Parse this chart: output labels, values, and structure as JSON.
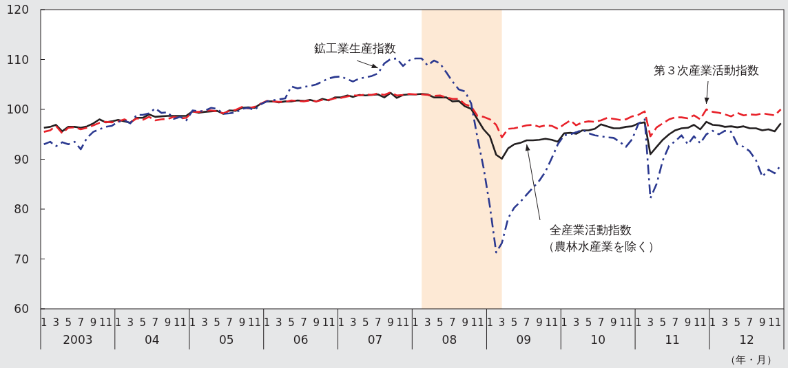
{
  "chart_data": {
    "type": "line",
    "x": [
      "2003-01",
      "2003-02",
      "2003-03",
      "2003-04",
      "2003-05",
      "2003-06",
      "2003-07",
      "2003-08",
      "2003-09",
      "2003-10",
      "2003-11",
      "2003-12",
      "2004-01",
      "2004-02",
      "2004-03",
      "2004-04",
      "2004-05",
      "2004-06",
      "2004-07",
      "2004-08",
      "2004-09",
      "2004-10",
      "2004-11",
      "2004-12",
      "2005-01",
      "2005-02",
      "2005-03",
      "2005-04",
      "2005-05",
      "2005-06",
      "2005-07",
      "2005-08",
      "2005-09",
      "2005-10",
      "2005-11",
      "2005-12",
      "2006-01",
      "2006-02",
      "2006-03",
      "2006-04",
      "2006-05",
      "2006-06",
      "2006-07",
      "2006-08",
      "2006-09",
      "2006-10",
      "2006-11",
      "2006-12",
      "2007-01",
      "2007-02",
      "2007-03",
      "2007-04",
      "2007-05",
      "2007-06",
      "2007-07",
      "2007-08",
      "2007-09",
      "2007-10",
      "2007-11",
      "2007-12",
      "2008-01",
      "2008-02",
      "2008-03",
      "2008-04",
      "2008-05",
      "2008-06",
      "2008-07",
      "2008-08",
      "2008-09",
      "2008-10",
      "2008-11",
      "2008-12",
      "2009-01",
      "2009-02",
      "2009-03",
      "2009-04",
      "2009-05",
      "2009-06",
      "2009-07",
      "2009-08",
      "2009-09",
      "2009-10",
      "2009-11",
      "2009-12",
      "2010-01",
      "2010-02",
      "2010-03",
      "2010-04",
      "2010-05",
      "2010-06",
      "2010-07",
      "2010-08",
      "2010-09",
      "2010-10",
      "2010-11",
      "2010-12",
      "2011-01",
      "2011-02",
      "2011-03",
      "2011-04",
      "2011-05",
      "2011-06",
      "2011-07",
      "2011-08",
      "2011-09",
      "2011-10",
      "2011-11",
      "2011-12",
      "2012-01",
      "2012-02",
      "2012-03",
      "2012-04",
      "2012-05",
      "2012-06",
      "2012-07",
      "2012-08",
      "2012-09",
      "2012-10",
      "2012-11",
      "2012-12"
    ],
    "series": [
      {
        "name": "全産業活動指数（農林水産業を除く）",
        "color": "#231f20",
        "line_style": "solid",
        "values": [
          96.3,
          96.5,
          96.9,
          95.6,
          96.5,
          96.5,
          96.3,
          96.6,
          97.2,
          98.0,
          97.4,
          97.6,
          97.9,
          97.6,
          97.3,
          98.3,
          98.3,
          99.0,
          98.5,
          98.6,
          98.7,
          98.7,
          98.7,
          98.7,
          99.6,
          99.3,
          99.5,
          99.6,
          99.7,
          99.1,
          99.8,
          99.7,
          100.3,
          100.4,
          100.3,
          101.1,
          101.6,
          101.6,
          101.4,
          101.6,
          101.6,
          101.8,
          101.7,
          101.9,
          101.6,
          102.1,
          101.8,
          102.4,
          102.4,
          102.8,
          102.5,
          102.9,
          102.8,
          102.9,
          103.0,
          102.4,
          103.3,
          102.3,
          102.9,
          103.0,
          103.0,
          103.1,
          103.0,
          102.4,
          102.4,
          102.4,
          101.6,
          101.7,
          100.6,
          100.1,
          98.0,
          96.0,
          94.6,
          90.9,
          90.1,
          92.2,
          93.0,
          93.3,
          93.8,
          93.8,
          93.9,
          94.1,
          93.9,
          93.5,
          95.2,
          95.3,
          95.1,
          95.8,
          95.8,
          96.1,
          97.0,
          96.6,
          96.2,
          96.2,
          96.5,
          96.6,
          97.2,
          97.4,
          91.0,
          92.5,
          93.9,
          95.0,
          95.8,
          96.2,
          96.3,
          96.9,
          96.0,
          97.5,
          96.9,
          96.8,
          96.5,
          96.6,
          96.4,
          96.6,
          96.2,
          96.2,
          95.8,
          96.0,
          95.6,
          97.2
        ]
      },
      {
        "name": "第３次産業活動指数",
        "color": "#e8222a",
        "line_style": "dashed",
        "values": [
          95.5,
          95.8,
          96.7,
          95.2,
          96.3,
          96.4,
          96.0,
          96.3,
          96.8,
          97.3,
          97.5,
          97.4,
          97.6,
          98.0,
          97.4,
          98.2,
          97.9,
          98.5,
          97.8,
          98.0,
          98.1,
          98.5,
          98.2,
          98.3,
          99.5,
          99.5,
          99.7,
          99.8,
          99.6,
          99.2,
          99.7,
          99.9,
          100.5,
          100.2,
          100.5,
          101.1,
          101.7,
          101.6,
          101.5,
          101.5,
          101.8,
          101.7,
          101.6,
          101.8,
          101.6,
          101.9,
          101.9,
          102.2,
          102.3,
          102.6,
          102.8,
          102.8,
          103.0,
          102.9,
          103.2,
          102.9,
          103.4,
          102.8,
          102.9,
          103.1,
          103.0,
          103.0,
          102.9,
          102.7,
          102.8,
          102.4,
          102.1,
          102.1,
          101.0,
          100.6,
          98.7,
          98.5,
          98.0,
          96.9,
          94.4,
          96.1,
          96.2,
          96.5,
          96.8,
          96.9,
          96.5,
          96.8,
          96.7,
          96.1,
          97.0,
          97.8,
          96.8,
          97.4,
          97.6,
          97.5,
          97.8,
          98.3,
          98.1,
          97.9,
          98.0,
          98.6,
          98.9,
          99.6,
          94.6,
          96.4,
          97.2,
          98.0,
          98.4,
          98.4,
          98.2,
          98.8,
          98.0,
          100.0,
          99.5,
          99.3,
          99.0,
          98.6,
          99.3,
          98.8,
          99.0,
          98.9,
          99.2,
          99.0,
          98.8,
          100.0
        ]
      },
      {
        "name": "鉱工業生産指数",
        "color": "#2b3990",
        "line_style": "dashdot",
        "values": [
          93.0,
          93.5,
          92.6,
          93.4,
          93.0,
          93.5,
          92.0,
          94.3,
          95.5,
          96.0,
          96.5,
          96.7,
          97.5,
          97.8,
          97.2,
          98.9,
          98.9,
          99.2,
          100.2,
          99.3,
          99.4,
          98.1,
          98.5,
          97.8,
          99.8,
          99.6,
          99.7,
          100.3,
          100.1,
          99.1,
          99.2,
          99.4,
          100.1,
          100.3,
          99.9,
          101.0,
          101.6,
          101.8,
          102.0,
          102.2,
          104.6,
          104.2,
          104.5,
          104.7,
          105.0,
          105.6,
          106.2,
          106.5,
          106.6,
          106.0,
          105.6,
          106.2,
          106.4,
          106.7,
          107.2,
          109.2,
          110.1,
          110.2,
          108.7,
          109.8,
          110.2,
          110.2,
          108.8,
          109.8,
          109.2,
          107.4,
          105.6,
          104.0,
          103.6,
          101.2,
          94.3,
          88.3,
          80.6,
          71.3,
          73.2,
          78.2,
          80.3,
          81.5,
          82.9,
          84.3,
          85.7,
          87.5,
          90.2,
          93.0,
          94.8,
          95.0,
          95.4,
          95.9,
          95.2,
          94.8,
          94.6,
          94.4,
          94.3,
          93.5,
          92.5,
          94.0,
          97.1,
          98.0,
          82.2,
          85.1,
          89.8,
          92.7,
          93.6,
          94.8,
          93.0,
          94.6,
          93.2,
          95.0,
          95.7,
          95.0,
          95.7,
          95.5,
          93.0,
          92.5,
          91.6,
          89.8,
          86.5,
          87.9,
          87.2,
          88.8
        ]
      }
    ],
    "xlim": [
      "2002-12-16",
      "2012-12-16"
    ],
    "xticks": [
      {
        "value": "2003-01",
        "label": "1"
      },
      {
        "value": "2003-03",
        "label": "3"
      },
      {
        "value": "2003-05",
        "label": "5"
      },
      {
        "value": "2003-07",
        "label": "7"
      },
      {
        "value": "2003-09",
        "label": "9"
      },
      {
        "value": "2003-11",
        "label": "11"
      },
      {
        "value": "2004-01",
        "label": "1"
      },
      {
        "value": "2004-03",
        "label": "3"
      },
      {
        "value": "2004-05",
        "label": "5"
      },
      {
        "value": "2004-07",
        "label": "7"
      },
      {
        "value": "2004-09",
        "label": "9"
      },
      {
        "value": "2004-11",
        "label": "11"
      },
      {
        "value": "2005-01",
        "label": "1"
      },
      {
        "value": "2005-03",
        "label": "3"
      },
      {
        "value": "2005-05",
        "label": "5"
      },
      {
        "value": "2005-07",
        "label": "7"
      },
      {
        "value": "2005-09",
        "label": "9"
      },
      {
        "value": "2005-11",
        "label": "11"
      },
      {
        "value": "2006-01",
        "label": "1"
      },
      {
        "value": "2006-03",
        "label": "3"
      },
      {
        "value": "2006-05",
        "label": "5"
      },
      {
        "value": "2006-07",
        "label": "7"
      },
      {
        "value": "2006-09",
        "label": "9"
      },
      {
        "value": "2006-11",
        "label": "11"
      },
      {
        "value": "2007-01",
        "label": "1"
      },
      {
        "value": "2007-03",
        "label": "3"
      },
      {
        "value": "2007-05",
        "label": "5"
      },
      {
        "value": "2007-07",
        "label": "7"
      },
      {
        "value": "2007-09",
        "label": "9"
      },
      {
        "value": "2007-11",
        "label": "11"
      },
      {
        "value": "2008-01",
        "label": "1"
      },
      {
        "value": "2008-03",
        "label": "3"
      },
      {
        "value": "2008-05",
        "label": "5"
      },
      {
        "value": "2008-07",
        "label": "7"
      },
      {
        "value": "2008-09",
        "label": "9"
      },
      {
        "value": "2008-11",
        "label": "11"
      },
      {
        "value": "2009-01",
        "label": "1"
      },
      {
        "value": "2009-03",
        "label": "3"
      },
      {
        "value": "2009-05",
        "label": "5"
      },
      {
        "value": "2009-07",
        "label": "7"
      },
      {
        "value": "2009-09",
        "label": "9"
      },
      {
        "value": "2009-11",
        "label": "11"
      },
      {
        "value": "2010-01",
        "label": "1"
      },
      {
        "value": "2010-03",
        "label": "3"
      },
      {
        "value": "2010-05",
        "label": "5"
      },
      {
        "value": "2010-07",
        "label": "7"
      },
      {
        "value": "2010-09",
        "label": "9"
      },
      {
        "value": "2010-11",
        "label": "11"
      },
      {
        "value": "2011-01",
        "label": "1"
      },
      {
        "value": "2011-03",
        "label": "3"
      },
      {
        "value": "2011-05",
        "label": "5"
      },
      {
        "value": "2011-07",
        "label": "7"
      },
      {
        "value": "2011-09",
        "label": "9"
      },
      {
        "value": "2011-11",
        "label": "11"
      },
      {
        "value": "2012-01",
        "label": "1"
      },
      {
        "value": "2012-03",
        "label": "3"
      },
      {
        "value": "2012-05",
        "label": "5"
      },
      {
        "value": "2012-07",
        "label": "7"
      },
      {
        "value": "2012-09",
        "label": "9"
      },
      {
        "value": "2012-11",
        "label": "11"
      }
    ],
    "ylim": [
      60,
      120
    ],
    "yticks": [
      60,
      70,
      80,
      90,
      100,
      110,
      120
    ],
    "bands": [
      {
        "axis": "x",
        "from": "2008-02",
        "to": "2009-03",
        "color": "#fde9d5"
      }
    ],
    "annotations": [
      "2003",
      "04",
      "05",
      "06",
      "07",
      "08",
      "09",
      "10",
      "11",
      "12",
      "（年・月）"
    ]
  }
}
